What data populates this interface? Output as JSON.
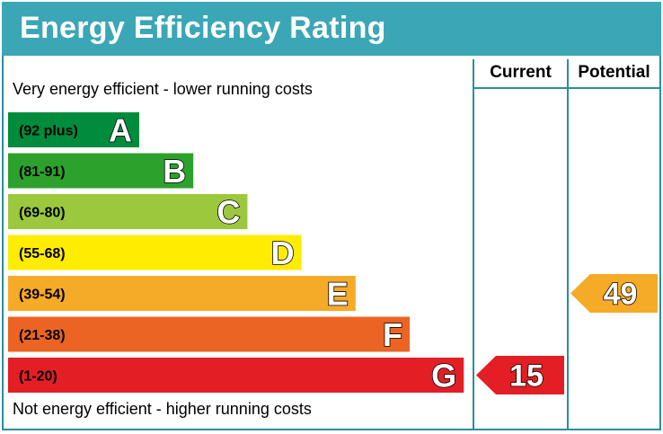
{
  "title": "Energy Efficiency Rating",
  "columns": {
    "current": "Current",
    "potential": "Potential"
  },
  "top_caption": "Very energy efficient - lower running costs",
  "bottom_caption": "Not energy efficient - higher running costs",
  "chart_data": {
    "type": "bar",
    "title": "Energy Efficiency Rating",
    "bands": [
      {
        "letter": "A",
        "range": "(92 plus)",
        "color": "#008c3c"
      },
      {
        "letter": "B",
        "range": "(81-91)",
        "color": "#2ca22c"
      },
      {
        "letter": "C",
        "range": "(69-80)",
        "color": "#9bc83c"
      },
      {
        "letter": "D",
        "range": "(55-68)",
        "color": "#ffec00"
      },
      {
        "letter": "E",
        "range": "(39-54)",
        "color": "#f5aa28"
      },
      {
        "letter": "F",
        "range": "(21-38)",
        "color": "#eb6423"
      },
      {
        "letter": "G",
        "range": "(1-20)",
        "color": "#e31e25"
      }
    ],
    "current": {
      "value": 15,
      "band": "G",
      "color": "#e31e25"
    },
    "potential": {
      "value": 49,
      "band": "E",
      "color": "#f5aa28"
    }
  }
}
